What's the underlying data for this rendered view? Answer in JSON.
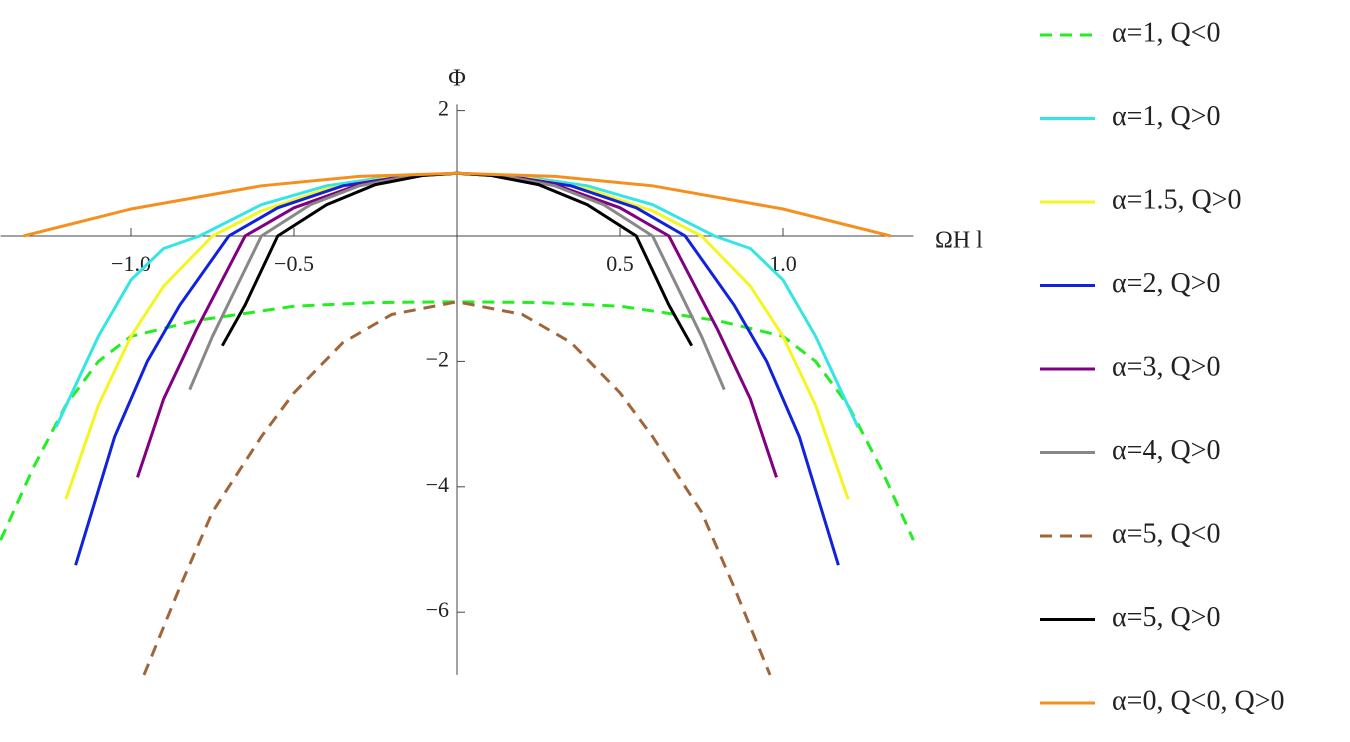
{
  "chart_data": {
    "type": "line",
    "xlabel": "ΩH l",
    "ylabel": "Φ",
    "xlim": [
      -1.4,
      1.4
    ],
    "ylim": [
      -7,
      2.1
    ],
    "xticks": [
      {
        "value": -1,
        "label": "−1.0"
      },
      {
        "value": -0.5,
        "label": "−0.5"
      },
      {
        "value": 0.5,
        "label": "0.5"
      },
      {
        "value": 1,
        "label": "1.0"
      }
    ],
    "yticks": [
      {
        "value": -6,
        "label": "−6"
      },
      {
        "value": -4,
        "label": "−4"
      },
      {
        "value": -2,
        "label": "−2"
      },
      2
    ],
    "series": [
      {
        "name": "α=1, Q<0",
        "color": "#22ee22",
        "dashed": true,
        "x": [
          -1.4,
          -1.3,
          -1.2,
          -1.1,
          -1.0,
          -0.8,
          -0.5,
          -0.25,
          0,
          0.25,
          0.5,
          0.8,
          1.0,
          1.1,
          1.2,
          1.3,
          1.4
        ],
        "values": [
          -4.85,
          -3.7,
          -2.7,
          -2.0,
          -1.6,
          -1.35,
          -1.12,
          -1.06,
          -1.05,
          -1.06,
          -1.12,
          -1.35,
          -1.6,
          -2.0,
          -2.7,
          -3.7,
          -4.85
        ]
      },
      {
        "name": "α=1, Q>0",
        "color": "#33e5e5",
        "dashed": false,
        "x": [
          -1.23,
          -1.1,
          -1.0,
          -0.9,
          -0.79,
          -0.6,
          -0.4,
          -0.2,
          0,
          0.2,
          0.4,
          0.6,
          0.79,
          0.9,
          1.0,
          1.1,
          1.23
        ],
        "values": [
          -3.05,
          -1.6,
          -0.7,
          -0.2,
          0,
          0.5,
          0.8,
          0.95,
          1,
          0.95,
          0.8,
          0.5,
          0,
          -0.2,
          -0.7,
          -1.6,
          -3.05
        ]
      },
      {
        "name": "α=1.5, Q>0",
        "color": "#f5f522",
        "dashed": false,
        "x": [
          -1.2,
          -1.1,
          -1.0,
          -0.9,
          -0.75,
          -0.6,
          -0.4,
          -0.2,
          0,
          0.2,
          0.4,
          0.6,
          0.75,
          0.9,
          1.0,
          1.1,
          1.2
        ],
        "values": [
          -4.2,
          -2.7,
          -1.6,
          -0.8,
          0,
          0.4,
          0.75,
          0.94,
          1,
          0.94,
          0.75,
          0.4,
          0,
          -0.8,
          -1.6,
          -2.7,
          -4.2
        ]
      },
      {
        "name": "α=2, Q>0",
        "color": "#1122dd",
        "dashed": false,
        "x": [
          -1.17,
          -1.05,
          -0.95,
          -0.85,
          -0.7,
          -0.55,
          -0.35,
          -0.15,
          0,
          0.15,
          0.35,
          0.55,
          0.7,
          0.85,
          0.95,
          1.05,
          1.17
        ],
        "values": [
          -5.25,
          -3.2,
          -2.0,
          -1.1,
          0,
          0.45,
          0.8,
          0.96,
          1,
          0.96,
          0.8,
          0.45,
          0,
          -1.1,
          -2.0,
          -3.2,
          -5.25
        ]
      },
      {
        "name": "α=3, Q>0",
        "color": "#800080",
        "dashed": false,
        "x": [
          -0.98,
          -0.9,
          -0.8,
          -0.65,
          -0.5,
          -0.3,
          -0.15,
          0,
          0.15,
          0.3,
          0.5,
          0.65,
          0.8,
          0.9,
          0.98
        ],
        "values": [
          -3.85,
          -2.6,
          -1.5,
          0,
          0.45,
          0.82,
          0.95,
          1,
          0.95,
          0.82,
          0.45,
          0,
          -1.5,
          -2.6,
          -3.85
        ]
      },
      {
        "name": "α=4, Q>0",
        "color": "#888888",
        "dashed": false,
        "x": [
          -0.82,
          -0.75,
          -0.6,
          -0.45,
          -0.3,
          -0.15,
          0,
          0.15,
          0.3,
          0.45,
          0.6,
          0.75,
          0.82
        ],
        "values": [
          -2.45,
          -1.6,
          0,
          0.5,
          0.8,
          0.95,
          1,
          0.95,
          0.8,
          0.5,
          0,
          -1.6,
          -2.45
        ]
      },
      {
        "name": "α=5, Q<0",
        "color": "#a0663a",
        "dashed": true,
        "x": [
          -0.96,
          -0.85,
          -0.75,
          -0.6,
          -0.5,
          -0.35,
          -0.2,
          0,
          0.2,
          0.35,
          0.5,
          0.6,
          0.75,
          0.85,
          0.96
        ],
        "values": [
          -7,
          -5.6,
          -4.4,
          -3.2,
          -2.5,
          -1.7,
          -1.25,
          -1.05,
          -1.25,
          -1.7,
          -2.5,
          -3.2,
          -4.4,
          -5.6,
          -7
        ]
      },
      {
        "name": "α=5, Q>0",
        "color": "#000000",
        "dashed": false,
        "x": [
          -0.72,
          -0.65,
          -0.55,
          -0.4,
          -0.25,
          -0.1,
          0,
          0.1,
          0.25,
          0.4,
          0.55,
          0.65,
          0.72
        ],
        "values": [
          -1.75,
          -1.1,
          0,
          0.5,
          0.82,
          0.97,
          1,
          0.97,
          0.82,
          0.5,
          0,
          -1.1,
          -1.75
        ]
      },
      {
        "name": "α=0, Q<0, Q>0",
        "color": "#f5901e",
        "dashed": false,
        "x": [
          -1.33,
          -1.0,
          -0.6,
          -0.3,
          0,
          0.3,
          0.6,
          1.0,
          1.33
        ],
        "values": [
          0,
          0.43,
          0.8,
          0.95,
          1,
          0.95,
          0.8,
          0.43,
          0
        ]
      }
    ]
  }
}
